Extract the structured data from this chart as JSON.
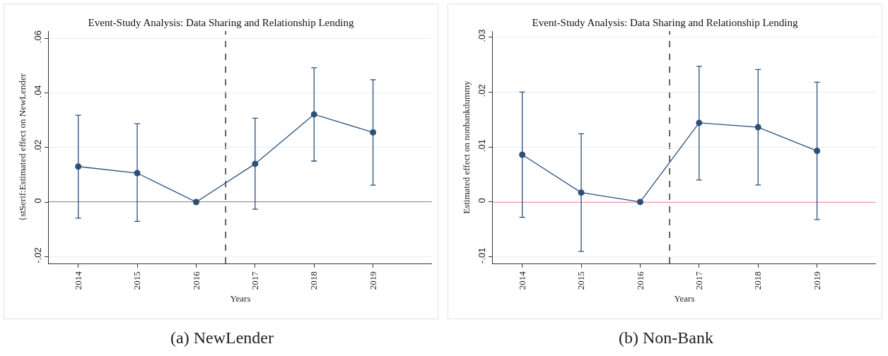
{
  "chart_data": [
    {
      "type": "line",
      "title": "Event-Study Analysis: Data Sharing and Relationship Lending",
      "xlabel": "Years",
      "ylabel": "{stSerif:Estimated effect on NewLender",
      "x": [
        2014,
        2015,
        2016,
        2017,
        2018,
        2019
      ],
      "series": [
        {
          "color": "#2b5079",
          "values": [
            0.013,
            0.0106,
            0,
            0.014,
            0.0321,
            0.0255
          ],
          "errors": [
            [
              -0.0059,
              0.0318
            ],
            [
              -0.0071,
              0.0287
            ],
            null,
            [
              -0.0026,
              0.0307
            ],
            [
              0.015,
              0.0492
            ],
            [
              0.0062,
              0.0448
            ]
          ]
        }
      ],
      "xlim": [
        2013.5,
        2020
      ],
      "xticks": [
        2014,
        2015,
        2016,
        2017,
        2018,
        2019
      ],
      "ylim": [
        -0.0225,
        0.0626
      ],
      "yticks": [
        {
          "value": -0.02,
          "label": "-.02"
        },
        0,
        {
          "value": 0.02,
          "label": ".02"
        },
        {
          "value": 0.04,
          "label": ".04"
        },
        {
          "value": 0.06,
          "label": ".06"
        }
      ],
      "ref_lines": [
        {
          "axis": "x",
          "value": 2016.5,
          "color": "#333333",
          "line_style": "dashed"
        },
        {
          "axis": "y",
          "value": 0,
          "color": "#c8385a",
          "line_style": "solid"
        }
      ],
      "grid": "y",
      "marker": "circle",
      "line_style": "solid",
      "annotations": [
        "(a) NewLender"
      ]
    },
    {
      "type": "line",
      "title": "Event-Study Analysis: Data Sharing and Relationship Lending",
      "xlabel": "Years",
      "ylabel": "Estimated effect on nonbankdummy",
      "x": [
        2014,
        2015,
        2016,
        2017,
        2018,
        2019
      ],
      "series": [
        {
          "color": "#2b5079",
          "values": [
            0.0086,
            0.0017,
            0,
            0.0144,
            0.0136,
            0.0093
          ],
          "errors": [
            [
              -0.0028,
              0.02
            ],
            [
              -0.009,
              0.0124
            ],
            null,
            [
              0.004,
              0.0247
            ],
            [
              0.0031,
              0.0241
            ],
            [
              -0.0032,
              0.0218
            ]
          ]
        }
      ],
      "xlim": [
        2013.5,
        2020
      ],
      "xticks": [
        2014,
        2015,
        2016,
        2017,
        2018,
        2019
      ],
      "ylim": [
        -0.0112,
        0.0311
      ],
      "yticks": [
        {
          "value": -0.01,
          "label": "-.01"
        },
        0,
        {
          "value": 0.01,
          "label": ".01"
        },
        {
          "value": 0.02,
          "label": ".02"
        },
        {
          "value": 0.03,
          "label": ".03"
        }
      ],
      "ref_lines": [
        {
          "axis": "x",
          "value": 2016.5,
          "color": "#333333",
          "line_style": "dashed"
        },
        {
          "axis": "y",
          "value": 0,
          "color": "#c8385a",
          "line_style": "solid"
        }
      ],
      "grid": "y",
      "marker": "circle",
      "line_style": "solid",
      "annotations": [
        "(b) Non-Bank"
      ]
    }
  ]
}
